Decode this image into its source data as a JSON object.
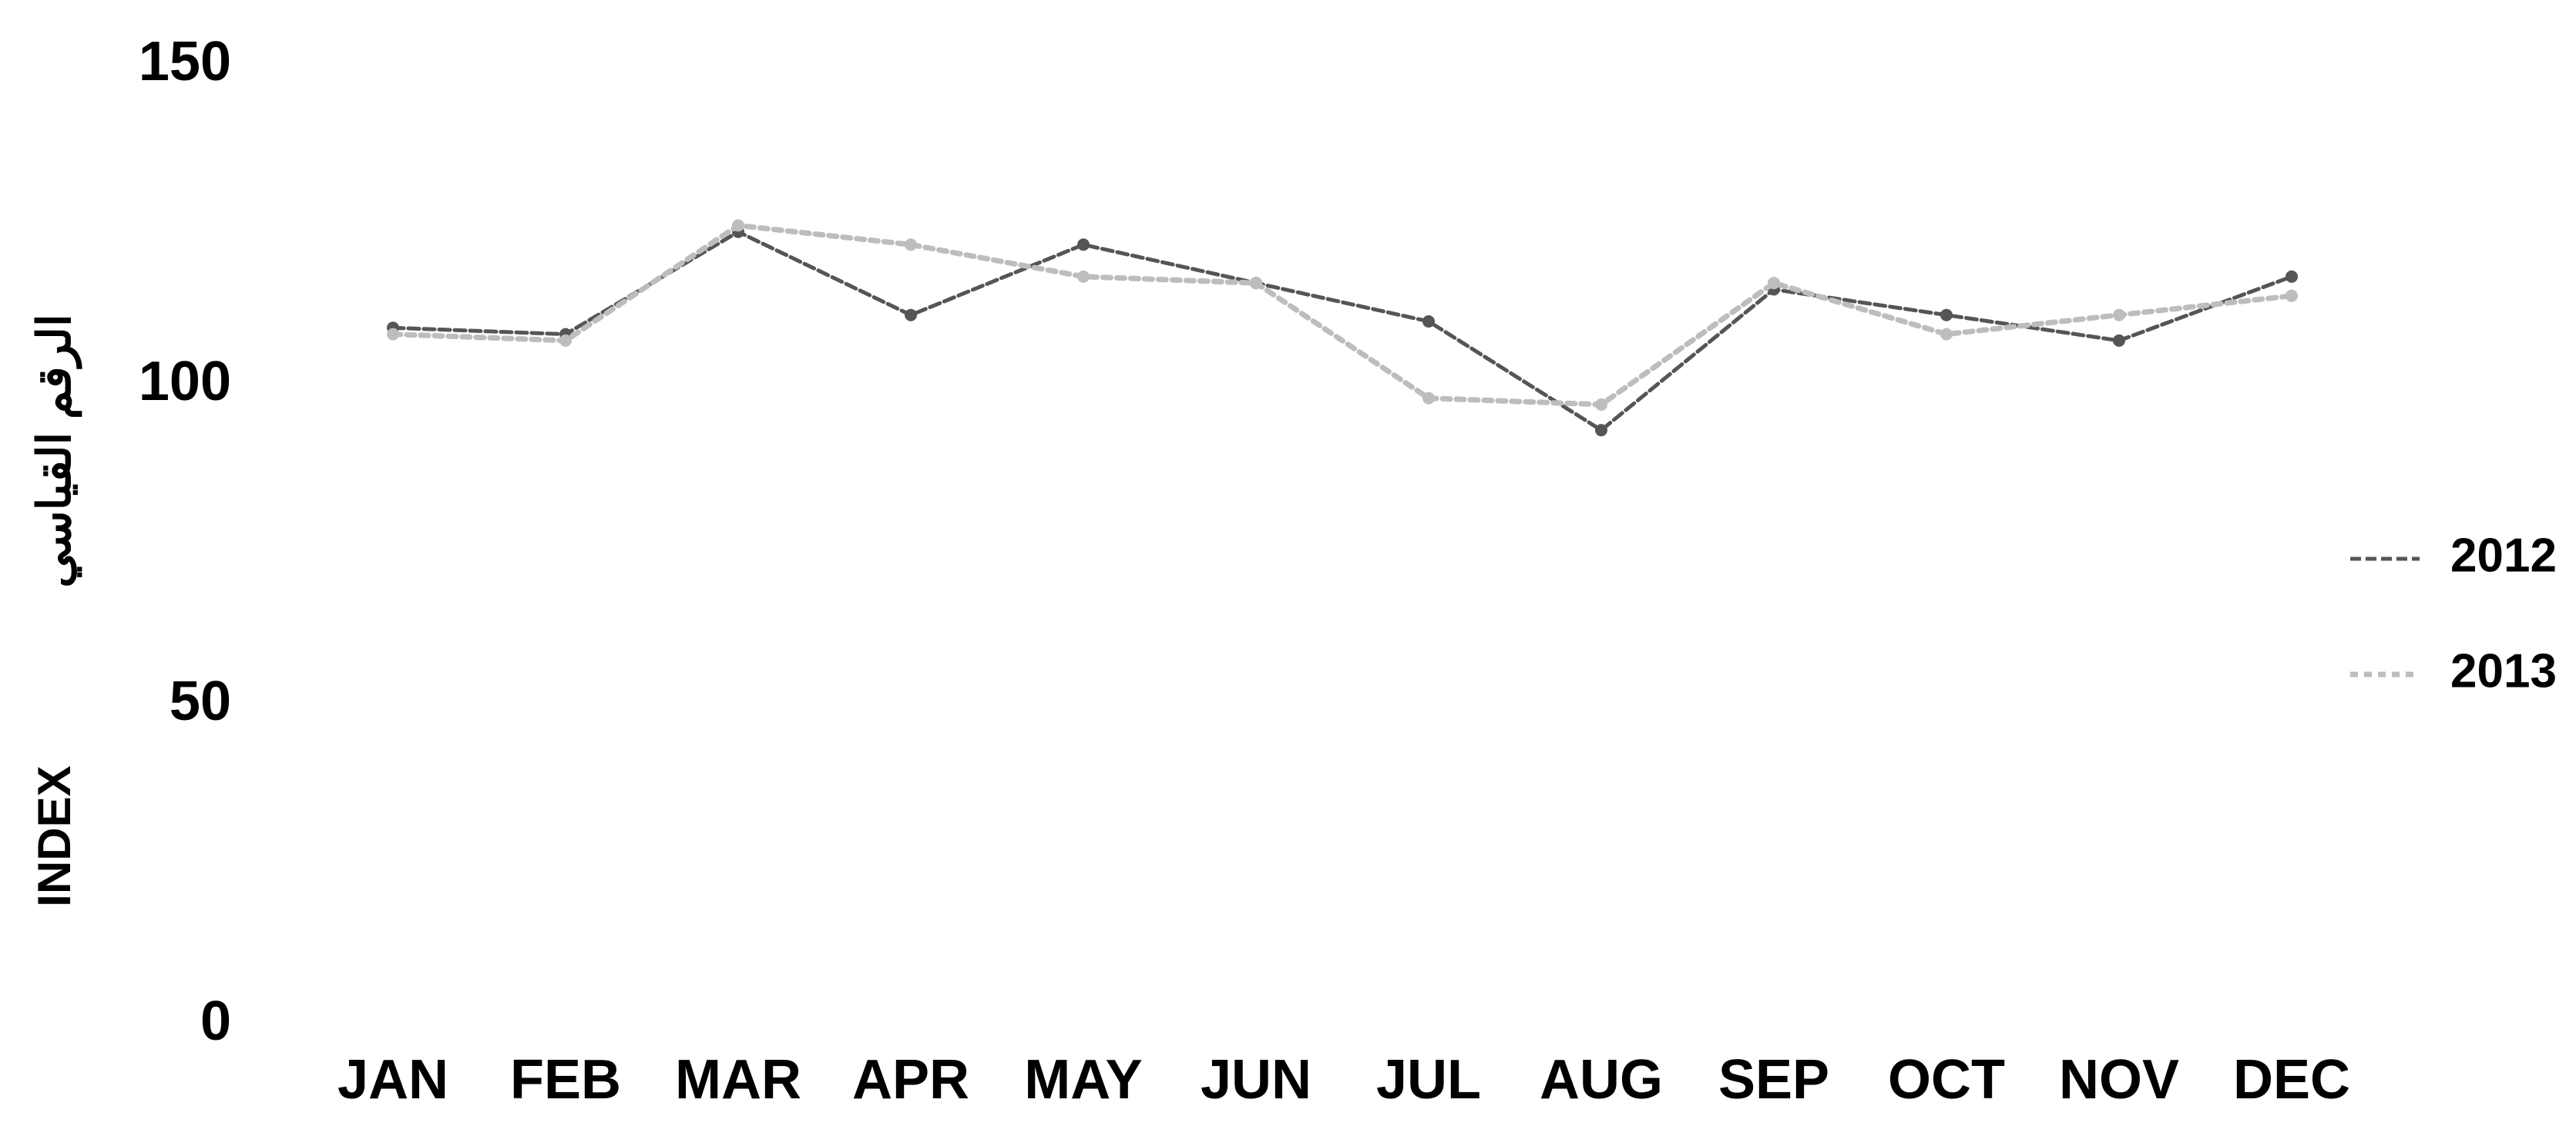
{
  "chart_data": {
    "type": "line",
    "categories": [
      "JAN",
      "FEB",
      "MAR",
      "APR",
      "MAY",
      "JUN",
      "JUL",
      "AUG",
      "SEP",
      "OCT",
      "NOV",
      "DEC"
    ],
    "series": [
      {
        "name": "2012",
        "values": [
          109,
          108,
          124,
          111,
          122,
          116,
          110,
          93,
          115,
          111,
          107,
          117
        ],
        "color": "#555555"
      },
      {
        "name": "2013",
        "values": [
          108,
          107,
          125,
          122,
          117,
          116,
          98,
          97,
          116,
          108,
          111,
          114
        ],
        "color": "#bdbdbd"
      }
    ],
    "ylabel": "INDEX الرقم القياسي",
    "ylabel_latin": "INDEX",
    "ylabel_arabic": "الرقم القياسي",
    "ylim": [
      0,
      150
    ],
    "yticks": [
      0,
      50,
      100,
      150
    ],
    "grid": false,
    "legend_position": "right"
  }
}
